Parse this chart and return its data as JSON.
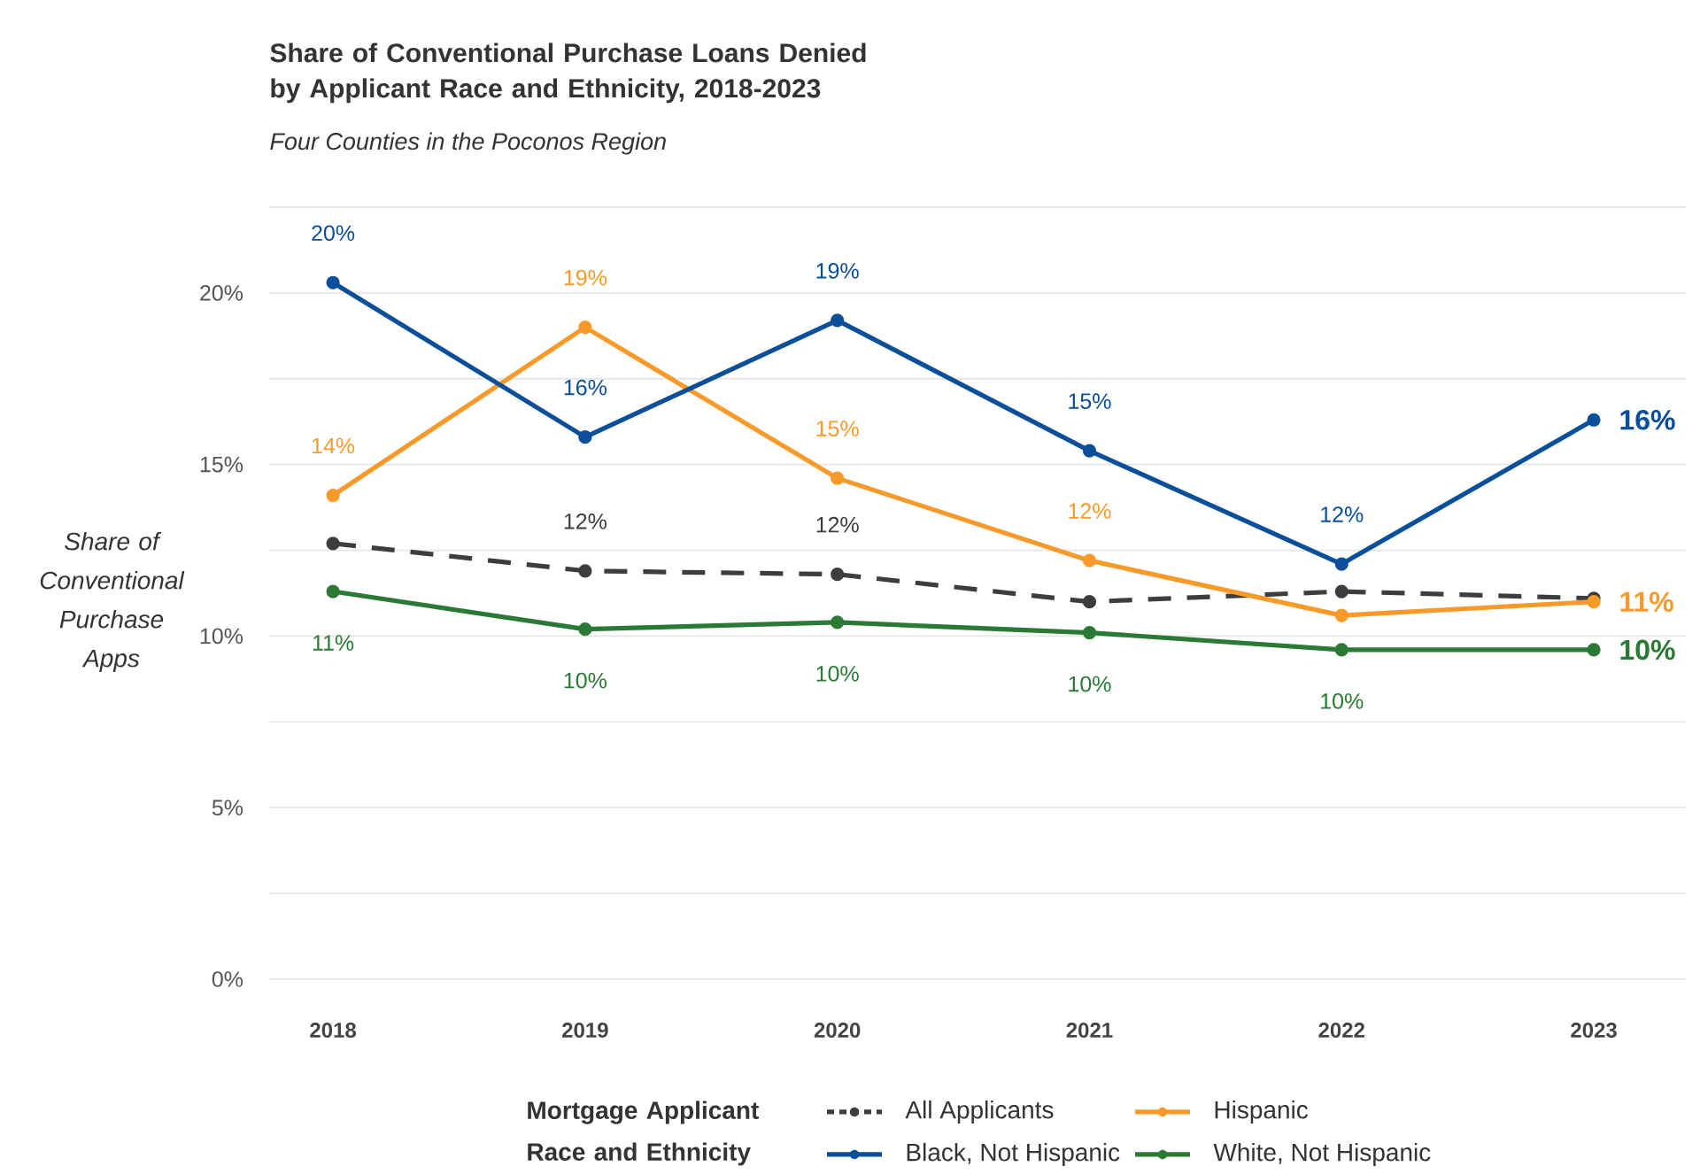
{
  "chart_data": {
    "type": "line",
    "title": "Share of Conventional Purchase Loans Denied by Applicant Race and Ethnicity, 2018-2023",
    "subtitle": "Four Counties in the Poconos Region",
    "ylabel": "Share of Conventional Purchase Apps",
    "legend_title": "Mortgage Applicant Race and Ethnicity",
    "categories": [
      "2018",
      "2019",
      "2020",
      "2021",
      "2022",
      "2023"
    ],
    "ylim": [
      0,
      22.5
    ],
    "yticks": [
      {
        "value": 0,
        "label": "0%"
      },
      {
        "value": 2.5,
        "label": null
      },
      {
        "value": 5,
        "label": "5%"
      },
      {
        "value": 7.5,
        "label": null
      },
      {
        "value": 10,
        "label": "10%"
      },
      {
        "value": 12.5,
        "label": null
      },
      {
        "value": 15,
        "label": "15%"
      },
      {
        "value": 17.5,
        "label": null
      },
      {
        "value": 20,
        "label": "20%"
      },
      {
        "value": 22.5,
        "label": null
      }
    ],
    "grid": "y",
    "legend": "bottom",
    "marker": "circle",
    "line_style": "solid",
    "series": [
      {
        "name": "All Applicants",
        "color": "#3d3d3d",
        "line_style": "dashed",
        "values": [
          12.7,
          11.9,
          11.8,
          11.0,
          11.3,
          11.1
        ],
        "value_labels": [
          null,
          "12%",
          "12%",
          null,
          null,
          null
        ]
      },
      {
        "name": "Hispanic",
        "color": "#f79a2a",
        "values": [
          14.1,
          19.0,
          14.6,
          12.2,
          10.6,
          11.0
        ],
        "value_labels": [
          "14%",
          "19%",
          "15%",
          "12%",
          null,
          "11%"
        ]
      },
      {
        "name": "Black, Not Hispanic",
        "color": "#0b4f9a",
        "values": [
          20.3,
          15.8,
          19.2,
          15.4,
          12.1,
          16.3
        ],
        "value_labels": [
          "20%",
          "16%",
          "19%",
          "15%",
          "12%",
          "16%"
        ]
      },
      {
        "name": "White, Not Hispanic",
        "color": "#2a7a35",
        "values": [
          11.3,
          10.2,
          10.4,
          10.1,
          9.6,
          9.6
        ],
        "value_labels": [
          "11%",
          "10%",
          "10%",
          "10%",
          "10%",
          "10%"
        ]
      }
    ]
  }
}
